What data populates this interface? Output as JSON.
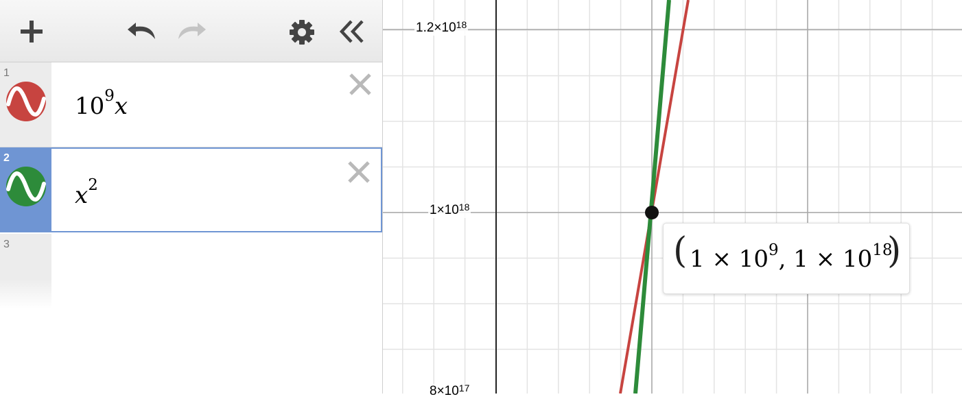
{
  "toolbar": {
    "add_icon": "plus-icon",
    "undo_icon": "undo-icon",
    "redo_icon": "redo-icon",
    "settings_icon": "gear-icon",
    "collapse_icon": "double-chevron-left-icon"
  },
  "expressions": [
    {
      "number": "1",
      "base": "10",
      "exponent": "9",
      "variable": "x",
      "color": "#c74440",
      "selected": false
    },
    {
      "number": "2",
      "variable": "x",
      "exponent": "2",
      "color": "#2d8b3a",
      "selected": true
    },
    {
      "number": "3"
    }
  ],
  "graph": {
    "y_labels": [
      {
        "mantissa": "1.2×10",
        "exp": "18"
      },
      {
        "mantissa": "1×10",
        "exp": "18"
      },
      {
        "mantissa": "8×10",
        "exp": "17"
      }
    ],
    "point_tooltip": {
      "open": "(",
      "x_mantissa": "1 × 10",
      "x_exp": "9",
      "sep": ", ",
      "y_mantissa": "1 × 10",
      "y_exp": "18",
      "close": ")"
    },
    "intersection_color": "#111111",
    "curve_colors": {
      "line": "#c74440",
      "parabola": "#2d8b3a"
    }
  }
}
